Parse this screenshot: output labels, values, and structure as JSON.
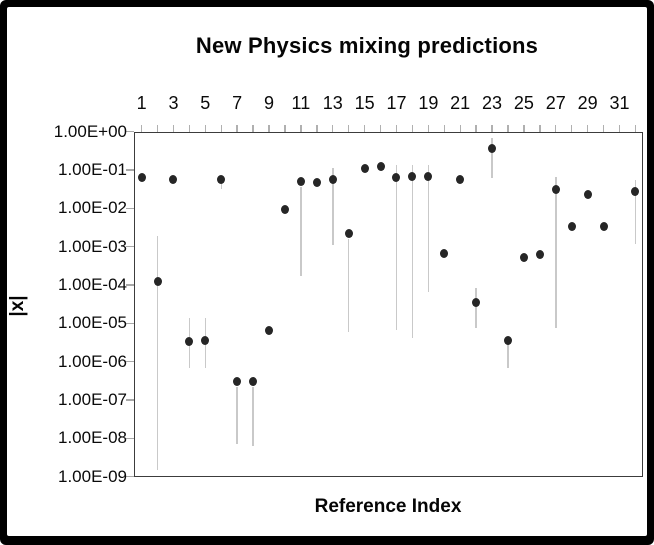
{
  "chart_data": {
    "type": "scatter",
    "title": "New Physics mixing predictions",
    "xlabel": "Reference Index",
    "ylabel": "|x|",
    "x_axis": {
      "position": "top",
      "range": [
        0.5,
        32.5
      ],
      "minor_tick_step": 1,
      "tick_values": [
        1,
        3,
        5,
        7,
        9,
        11,
        13,
        15,
        17,
        19,
        21,
        23,
        25,
        27,
        29,
        31
      ],
      "tick_labels": [
        "1",
        "3",
        "5",
        "7",
        "9",
        "11",
        "13",
        "15",
        "17",
        "19",
        "21",
        "23",
        "25",
        "27",
        "29",
        "31"
      ]
    },
    "y_axis": {
      "scale": "log",
      "range": [
        1e-09,
        1
      ],
      "tick_values": [
        1,
        0.1,
        0.01,
        0.001,
        0.0001,
        1e-05,
        1e-06,
        1e-07,
        1e-08,
        1e-09
      ],
      "tick_labels": [
        "1.00E+00",
        "1.00E-01",
        "1.00E-02",
        "1.00E-03",
        "1.00E-04",
        "1.00E-05",
        "1.00E-06",
        "1.00E-07",
        "1.00E-08",
        "1.00E-09"
      ]
    },
    "legend": "none",
    "grid": "off",
    "points": [
      {
        "index": 1,
        "value": 0.063,
        "err_low": null,
        "err_high": null
      },
      {
        "index": 2,
        "value": 0.00012,
        "err_low": 1.5e-09,
        "err_high": 0.0019
      },
      {
        "index": 3,
        "value": 0.055,
        "err_low": null,
        "err_high": null
      },
      {
        "index": 4,
        "value": 3.4e-06,
        "err_low": 7e-07,
        "err_high": 1.4e-05
      },
      {
        "index": 5,
        "value": 3.5e-06,
        "err_low": 7e-07,
        "err_high": 1.4e-05
      },
      {
        "index": 6,
        "value": 0.056,
        "err_low": 0.032,
        "err_high": 0.056
      },
      {
        "index": 7,
        "value": 3.1e-07,
        "err_low": 7e-09,
        "err_high": 2.2e-07
      },
      {
        "index": 8,
        "value": 3.1e-07,
        "err_low": 6.5e-09,
        "err_high": 2.2e-07
      },
      {
        "index": 9,
        "value": 6.5e-06,
        "err_low": null,
        "err_high": null
      },
      {
        "index": 10,
        "value": 0.0093,
        "err_low": null,
        "err_high": null
      },
      {
        "index": 11,
        "value": 0.049,
        "err_low": 0.00017,
        "err_high": 0.037
      },
      {
        "index": 12,
        "value": 0.047,
        "err_low": null,
        "err_high": null
      },
      {
        "index": 13,
        "value": 0.055,
        "err_low": 0.0011,
        "err_high": 0.11
      },
      {
        "index": 14,
        "value": 0.0022,
        "err_low": 6e-06,
        "err_high": 0.0016
      },
      {
        "index": 15,
        "value": 0.11,
        "err_low": null,
        "err_high": null
      },
      {
        "index": 16,
        "value": 0.125,
        "err_low": null,
        "err_high": null
      },
      {
        "index": 17,
        "value": 0.065,
        "err_low": 6.7e-06,
        "err_high": 0.135
      },
      {
        "index": 18,
        "value": 0.068,
        "err_low": 4.1e-06,
        "err_high": 0.135
      },
      {
        "index": 19,
        "value": 0.067,
        "err_low": 6.7e-05,
        "err_high": 0.135
      },
      {
        "index": 20,
        "value": 0.00068,
        "err_low": null,
        "err_high": null
      },
      {
        "index": 21,
        "value": 0.056,
        "err_low": null,
        "err_high": null
      },
      {
        "index": 22,
        "value": 3.6e-05,
        "err_low": 7.6e-06,
        "err_high": 8.3e-05
      },
      {
        "index": 23,
        "value": 0.36,
        "err_low": 0.063,
        "err_high": 0.68
      },
      {
        "index": 24,
        "value": 3.5e-06,
        "err_low": 6.8e-07,
        "err_high": 3.5e-06
      },
      {
        "index": 25,
        "value": 0.00052,
        "err_low": null,
        "err_high": null
      },
      {
        "index": 26,
        "value": 0.00063,
        "err_low": null,
        "err_high": null
      },
      {
        "index": 27,
        "value": 0.031,
        "err_low": 7.7e-06,
        "err_high": 0.067
      },
      {
        "index": 28,
        "value": 0.0033,
        "err_low": null,
        "err_high": null
      },
      {
        "index": 29,
        "value": 0.023,
        "err_low": null,
        "err_high": null
      },
      {
        "index": 30,
        "value": 0.0033,
        "err_low": null,
        "err_high": null
      },
      {
        "index": 31,
        "value": null,
        "err_low": null,
        "err_high": null
      },
      {
        "index": 32,
        "value": 0.028,
        "err_low": 0.0012,
        "err_high": 0.055
      }
    ]
  },
  "colors": {
    "frame": "#000000",
    "background": "#ffffff",
    "dot": "#262626",
    "error_bar": "#c9c9c9",
    "axis": "#3c3c3c",
    "tick": "#b0b0b0",
    "text": "#0a0a0a"
  }
}
